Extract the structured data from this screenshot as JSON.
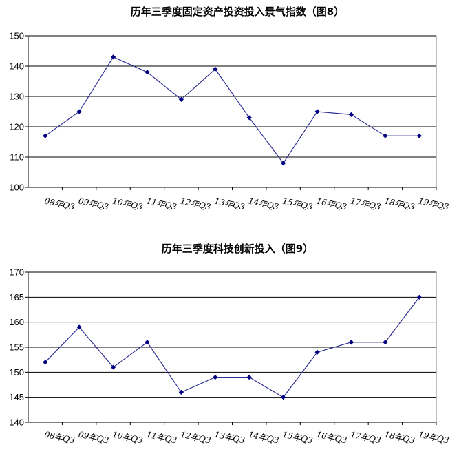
{
  "chart_data": [
    {
      "type": "line",
      "title": "历年三季度固定资产投资投入景气指数（图8）",
      "categories": [
        "08年Q3",
        "09年Q3",
        "10年Q3",
        "11年Q3",
        "12年Q3",
        "13年Q3",
        "14年Q3",
        "15年Q3",
        "16年Q3",
        "17年Q3",
        "18年Q3",
        "19年Q3"
      ],
      "series": [
        {
          "values": [
            117,
            125,
            143,
            138,
            129,
            139,
            123,
            108,
            125,
            124,
            117,
            117
          ]
        }
      ],
      "ylim": [
        100,
        150
      ],
      "yticks": [
        100,
        110,
        120,
        130,
        140,
        150
      ],
      "grid": true,
      "color": "#2e3092",
      "marker_color": "#000080"
    },
    {
      "type": "line",
      "title": "历年三季度科技创新投入（图9）",
      "categories": [
        "08年Q3",
        "09年Q3",
        "10年Q3",
        "11年Q3",
        "12年Q3",
        "13年Q3",
        "14年Q3",
        "15年Q3",
        "16年Q3",
        "17年Q3",
        "18年Q3",
        "19年Q3"
      ],
      "series": [
        {
          "values": [
            152,
            159,
            151,
            156,
            146,
            149,
            149,
            145,
            154,
            156,
            156,
            165
          ]
        }
      ],
      "ylim": [
        140,
        170
      ],
      "yticks": [
        140,
        145,
        150,
        155,
        160,
        165,
        170
      ],
      "grid": true,
      "color": "#2e3092",
      "marker_color": "#000080"
    }
  ]
}
